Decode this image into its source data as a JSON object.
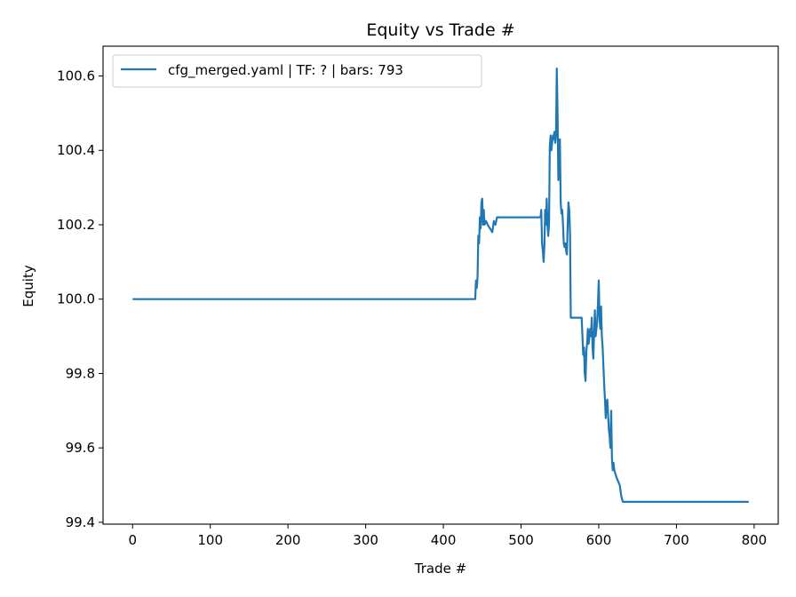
{
  "chart_data": {
    "type": "line",
    "title": "Equity vs Trade #",
    "xlabel": "Trade #",
    "ylabel": "Equity",
    "xlim": [
      -38,
      831
    ],
    "ylim": [
      99.395,
      100.68
    ],
    "xticks": [
      0,
      100,
      200,
      300,
      400,
      500,
      600,
      700,
      800
    ],
    "xtick_labels": [
      "0",
      "100",
      "200",
      "300",
      "400",
      "500",
      "600",
      "700",
      "800"
    ],
    "yticks": [
      99.4,
      99.6,
      99.8,
      100.0,
      100.2,
      100.4,
      100.6
    ],
    "ytick_labels": [
      "99.4",
      "99.6",
      "99.8",
      "100.0",
      "100.2",
      "100.4",
      "100.6"
    ],
    "grid": false,
    "legend_position": "top-left",
    "series": [
      {
        "name": "cfg_merged.yaml | TF: ? | bars: 793",
        "color": "#1f77b4",
        "points": [
          [
            0,
            100.0
          ],
          [
            441,
            100.0
          ],
          [
            442,
            100.05
          ],
          [
            443,
            100.03
          ],
          [
            444,
            100.06
          ],
          [
            445,
            100.17
          ],
          [
            446,
            100.15
          ],
          [
            447,
            100.22
          ],
          [
            448,
            100.19
          ],
          [
            449,
            100.26
          ],
          [
            450,
            100.27
          ],
          [
            451,
            100.2
          ],
          [
            452,
            100.24
          ],
          [
            453,
            100.2
          ],
          [
            455,
            100.21
          ],
          [
            457,
            100.2
          ],
          [
            460,
            100.19
          ],
          [
            463,
            100.18
          ],
          [
            465,
            100.21
          ],
          [
            467,
            100.2
          ],
          [
            469,
            100.22
          ],
          [
            525,
            100.22
          ],
          [
            526,
            100.24
          ],
          [
            527,
            100.15
          ],
          [
            528,
            100.13
          ],
          [
            529,
            100.1
          ],
          [
            530,
            100.14
          ],
          [
            531,
            100.24
          ],
          [
            532,
            100.2
          ],
          [
            533,
            100.27
          ],
          [
            534,
            100.2
          ],
          [
            535,
            100.17
          ],
          [
            536,
            100.2
          ],
          [
            537,
            100.41
          ],
          [
            538,
            100.44
          ],
          [
            539,
            100.4
          ],
          [
            540,
            100.42
          ],
          [
            541,
            100.44
          ],
          [
            542,
            100.43
          ],
          [
            543,
            100.45
          ],
          [
            544,
            100.42
          ],
          [
            545,
            100.44
          ],
          [
            546,
            100.62
          ],
          [
            547,
            100.5
          ],
          [
            548,
            100.32
          ],
          [
            549,
            100.41
          ],
          [
            550,
            100.43
          ],
          [
            551,
            100.26
          ],
          [
            552,
            100.23
          ],
          [
            553,
            100.24
          ],
          [
            554,
            100.2
          ],
          [
            555,
            100.15
          ],
          [
            556,
            100.14
          ],
          [
            557,
            100.15
          ],
          [
            558,
            100.13
          ],
          [
            559,
            100.12
          ],
          [
            560,
            100.2
          ],
          [
            561,
            100.26
          ],
          [
            562,
            100.24
          ],
          [
            563,
            100.18
          ],
          [
            564,
            99.95
          ],
          [
            578,
            99.95
          ],
          [
            579,
            99.9
          ],
          [
            580,
            99.85
          ],
          [
            581,
            99.87
          ],
          [
            582,
            99.8
          ],
          [
            583,
            99.78
          ],
          [
            584,
            99.86
          ],
          [
            585,
            99.88
          ],
          [
            586,
            99.92
          ],
          [
            587,
            99.88
          ],
          [
            588,
            99.9
          ],
          [
            589,
            99.92
          ],
          [
            590,
            99.9
          ],
          [
            591,
            99.95
          ],
          [
            592,
            99.87
          ],
          [
            593,
            99.84
          ],
          [
            594,
            99.91
          ],
          [
            595,
            99.97
          ],
          [
            596,
            99.9
          ],
          [
            597,
            99.92
          ],
          [
            598,
            99.94
          ],
          [
            599,
            99.99
          ],
          [
            600,
            100.05
          ],
          [
            601,
            99.95
          ],
          [
            602,
            99.92
          ],
          [
            603,
            99.98
          ],
          [
            604,
            99.9
          ],
          [
            605,
            99.87
          ],
          [
            606,
            99.82
          ],
          [
            607,
            99.77
          ],
          [
            608,
            99.73
          ],
          [
            609,
            99.68
          ],
          [
            610,
            99.72
          ],
          [
            611,
            99.73
          ],
          [
            612,
            99.69
          ],
          [
            613,
            99.65
          ],
          [
            614,
            99.63
          ],
          [
            615,
            99.6
          ],
          [
            616,
            99.7
          ],
          [
            617,
            99.57
          ],
          [
            618,
            99.54
          ],
          [
            619,
            99.56
          ],
          [
            620,
            99.54
          ],
          [
            623,
            99.52
          ],
          [
            627,
            99.5
          ],
          [
            629,
            99.47
          ],
          [
            631,
            99.455
          ],
          [
            793,
            99.455
          ]
        ]
      }
    ]
  }
}
